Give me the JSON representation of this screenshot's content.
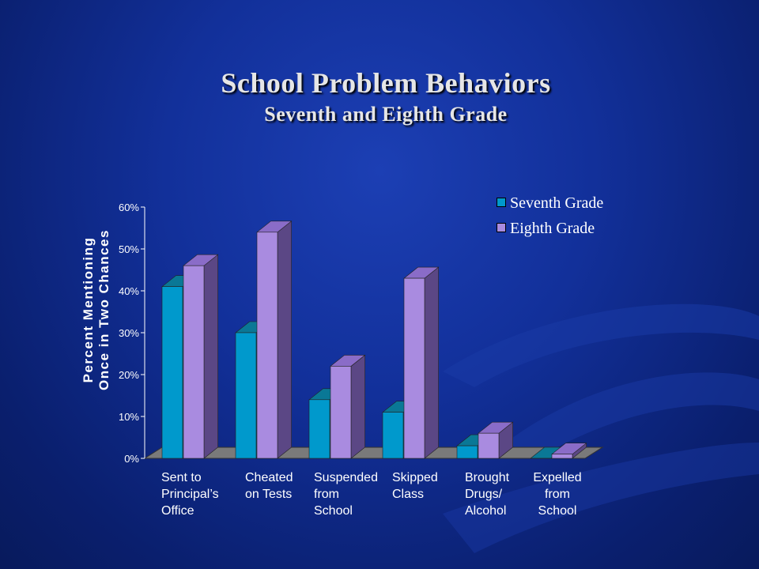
{
  "title": "School Problem Behaviors",
  "subtitle": "Seventh and Eighth Grade",
  "colors": {
    "seventh_front": "#0099cc",
    "seventh_side": "#006a8c",
    "seventh_top": "#0a7896",
    "eighth_front": "#a98be0",
    "eighth_side": "#5b4785",
    "eighth_top": "#8a6cc8",
    "floor": "#7a7a7a"
  },
  "chart_data": {
    "type": "bar",
    "ylabel_line1": "Percent Mentioning",
    "ylabel_line2": "Once in Two Chances",
    "ylim": [
      0,
      60
    ],
    "yticks": [
      0,
      10,
      20,
      30,
      40,
      50,
      60
    ],
    "ytick_labels": [
      "0%",
      "10%",
      "20%",
      "30%",
      "40%",
      "50%",
      "60%"
    ],
    "categories": [
      [
        "Sent to",
        "Principal’s",
        "Office"
      ],
      [
        "Cheated",
        "on Tests"
      ],
      [
        "Suspended",
        "from",
        "School"
      ],
      [
        "Skipped",
        "Class"
      ],
      [
        "Brought",
        "Drugs/",
        "Alcohol"
      ],
      [
        "Expelled",
        "from",
        "School"
      ]
    ],
    "series": [
      {
        "name": "Seventh Grade",
        "values": [
          41,
          30,
          14,
          11,
          3,
          0
        ]
      },
      {
        "name": "Eighth Grade",
        "values": [
          46,
          54,
          22,
          43,
          6,
          1
        ]
      }
    ],
    "legend_position": "top-right",
    "grid": false
  }
}
